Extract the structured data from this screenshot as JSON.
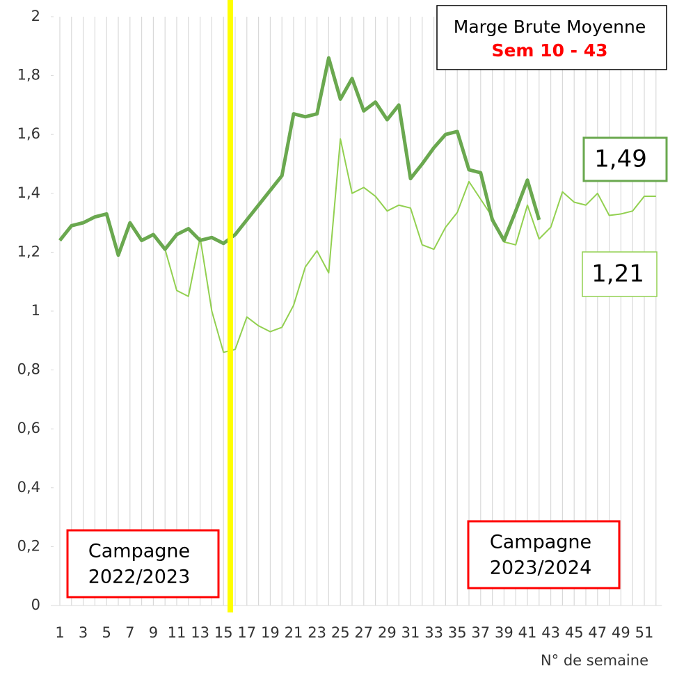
{
  "chart_data": {
    "type": "line",
    "title": "Marge Brute Moyenne",
    "subtitle": "Sem 10 - 43",
    "x_label": "N° de semaine",
    "categories": [
      1,
      null,
      3,
      null,
      5,
      null,
      7,
      null,
      9,
      null,
      11,
      null,
      13,
      null,
      15,
      null,
      17,
      null,
      19,
      null,
      21,
      null,
      23,
      null,
      25,
      null,
      27,
      null,
      29,
      null,
      31,
      null,
      33,
      null,
      35,
      null,
      37,
      null,
      39,
      null,
      41,
      null,
      43,
      null,
      45,
      null,
      47,
      null,
      49,
      null,
      51,
      null
    ],
    "series": [
      {
        "color": "#92d050",
        "width": 2,
        "values": [
          1.24,
          1.29,
          1.3,
          1.32,
          1.33,
          1.19,
          1.3,
          1.24,
          1.26,
          1.21,
          1.07,
          1.05,
          1.25,
          1.0,
          0.86,
          0.87,
          0.98,
          0.95,
          0.93,
          0.945,
          1.02,
          1.15,
          1.205,
          1.13,
          1.585,
          1.4,
          1.42,
          1.39,
          1.34,
          1.36,
          1.35,
          1.225,
          1.21,
          1.285,
          1.335,
          1.44,
          1.38,
          1.32,
          1.235,
          1.225,
          1.36,
          1.245,
          1.285,
          1.405,
          1.37,
          1.36,
          1.4,
          1.325,
          1.33,
          1.34,
          1.39,
          1.39
        ]
      },
      {
        "color": "#6aa84f",
        "width": 5,
        "values": [
          1.24,
          1.29,
          1.3,
          1.32,
          1.33,
          1.19,
          1.3,
          1.24,
          1.26,
          1.21,
          1.26,
          1.28,
          1.24,
          1.25,
          1.23,
          1.26,
          1.31,
          1.36,
          1.41,
          1.46,
          1.67,
          1.66,
          1.67,
          1.86,
          1.72,
          1.79,
          1.68,
          1.71,
          1.65,
          1.7,
          1.45,
          1.5,
          1.555,
          1.6,
          1.61,
          1.48,
          1.47,
          1.31,
          1.24,
          1.34,
          1.445,
          1.31,
          null,
          null,
          null,
          null,
          null,
          null,
          null,
          null,
          null,
          null
        ]
      }
    ],
    "ylim": [
      0,
      2
    ],
    "yticks": [
      0,
      {
        "value": 0.2,
        "label": "0,2"
      },
      {
        "value": 0.4,
        "label": "0,4"
      },
      {
        "value": 0.6,
        "label": "0,6"
      },
      {
        "value": 0.8,
        "label": "0,8"
      },
      1,
      {
        "value": 1.2,
        "label": "1,2"
      },
      {
        "value": 1.4,
        "label": "1,4"
      },
      {
        "value": 1.6,
        "label": "1,6"
      },
      {
        "value": 1.8,
        "label": "1,8"
      },
      2
    ],
    "grid": true,
    "annotations": {
      "dark_value": "1,49",
      "light_value": "1,21",
      "campaign_left": [
        "Campagne",
        "2022/2023"
      ],
      "campaign_right": [
        "Campagne",
        "2023/2024"
      ]
    }
  }
}
